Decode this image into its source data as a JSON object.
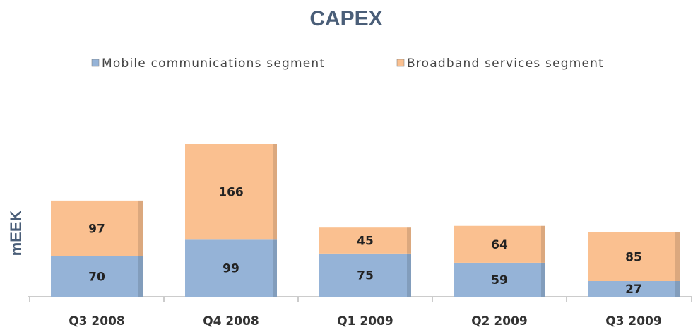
{
  "chart_data": {
    "type": "stacked_bar",
    "title": "CAPEX",
    "y_label": "mEEK",
    "categories": [
      "Q3 2008",
      "Q4 2008",
      "Q1 2009",
      "Q2 2009",
      "Q3 2009"
    ],
    "series": [
      {
        "name": "Mobile communications segment",
        "color": "#95b3d7",
        "values": [
          70,
          99,
          75,
          59,
          27
        ]
      },
      {
        "name": "Broadband services segment",
        "color": "#fac090",
        "values": [
          97,
          166,
          45,
          64,
          85
        ]
      }
    ]
  }
}
